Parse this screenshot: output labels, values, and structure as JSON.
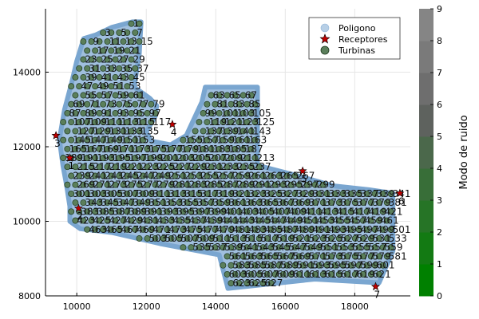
{
  "chart_data": {
    "type": "scatter",
    "xlim": [
      9100,
      19600
    ],
    "ylim": [
      8000,
      15700
    ],
    "x_ticks": [
      10000,
      12000,
      14000,
      16000,
      18000
    ],
    "y_ticks": [
      8000,
      10000,
      12000,
      14000
    ],
    "x_tick_labels": [
      "10000",
      "12000",
      "14000",
      "16000",
      "18000"
    ],
    "y_tick_labels": [
      "8000",
      "10000",
      "12000",
      "14000"
    ],
    "grid": true,
    "legend": {
      "position": "top-right",
      "entries": [
        {
          "label": "Poligono",
          "marker": "circle",
          "color": "#b7cfe6"
        },
        {
          "label": "Receptores",
          "marker": "star",
          "color": "#c00000"
        },
        {
          "label": "Turbinas",
          "marker": "circle",
          "color": "#5b7f5b"
        }
      ]
    },
    "colorbar": {
      "label": "Modo de ruido",
      "min": 0,
      "max": 9,
      "ticks": [
        "0",
        "1",
        "2",
        "3",
        "4",
        "5",
        "6",
        "7",
        "8",
        "9"
      ],
      "colors": [
        "#008000",
        "#137a13",
        "#267426",
        "#386e38",
        "#4b684b",
        "#5e625e",
        "#6e6e6e",
        "#7a7a7a",
        "#858585"
      ]
    },
    "polygon": {
      "label": "Poligono",
      "color": "#8fb4d8",
      "vertices": [
        [
          11600,
          15350
        ],
        [
          11850,
          15350
        ],
        [
          11800,
          14500
        ],
        [
          11650,
          13600
        ],
        [
          12100,
          13300
        ],
        [
          12300,
          13100
        ],
        [
          12250,
          12800
        ],
        [
          12000,
          12400
        ],
        [
          12150,
          12150
        ],
        [
          12700,
          12050
        ],
        [
          13150,
          12300
        ],
        [
          13600,
          13200
        ],
        [
          13700,
          13600
        ],
        [
          15200,
          13600
        ],
        [
          15200,
          11500
        ],
        [
          16250,
          11250
        ],
        [
          17400,
          10950
        ],
        [
          18400,
          10850
        ],
        [
          19100,
          10750
        ],
        [
          19100,
          9200
        ],
        [
          18700,
          8350
        ],
        [
          16850,
          8450
        ],
        [
          14350,
          8200
        ],
        [
          14100,
          9100
        ],
        [
          12400,
          9400
        ],
        [
          11000,
          9700
        ],
        [
          10100,
          9800
        ],
        [
          9800,
          10000
        ],
        [
          9800,
          10400
        ],
        [
          9700,
          11000
        ],
        [
          9600,
          11500
        ],
        [
          9500,
          12200
        ],
        [
          9650,
          13000
        ],
        [
          9850,
          13700
        ],
        [
          10000,
          14300
        ],
        [
          10200,
          14900
        ],
        [
          10550,
          15000
        ],
        [
          11000,
          15200
        ]
      ]
    },
    "receptors": {
      "label": "Receptores",
      "color": "#c00000",
      "points": [
        {
          "id": "1",
          "x": 9800,
          "y": 11700
        },
        {
          "id": "2",
          "x": 10050,
          "y": 10350
        },
        {
          "id": "3",
          "x": 9400,
          "y": 12300
        },
        {
          "id": "4",
          "x": 12750,
          "y": 12600
        },
        {
          "id": "5",
          "x": 16500,
          "y": 11350
        },
        {
          "id": "6",
          "x": 19300,
          "y": 10750
        },
        {
          "id": "7",
          "x": 18600,
          "y": 8250
        }
      ]
    },
    "turbines": {
      "label": "Turbinas",
      "color": "#5b7f5b",
      "count": 468,
      "visible_labels": [
        "323",
        "2904",
        "461",
        "409",
        "4942",
        "4605",
        "468",
        "10916",
        "21",
        "23"
      ]
    }
  }
}
